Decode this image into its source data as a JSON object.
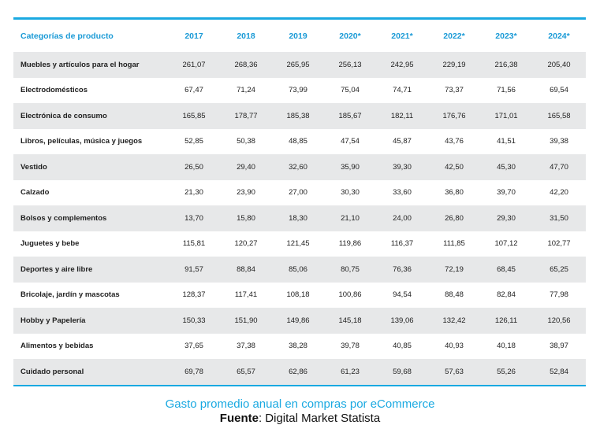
{
  "chart_data": {
    "type": "table",
    "columns": [
      "Categorías de producto",
      "2017",
      "2018",
      "2019",
      "2020*",
      "2021*",
      "2022*",
      "2023*",
      "2024*"
    ],
    "rows": [
      {
        "category": "Muebles y artículos para el hogar",
        "values": [
          "261,07",
          "268,36",
          "265,95",
          "256,13",
          "242,95",
          "229,19",
          "216,38",
          "205,40"
        ]
      },
      {
        "category": "Electrodomésticos",
        "values": [
          "67,47",
          "71,24",
          "73,99",
          "75,04",
          "74,71",
          "73,37",
          "71,56",
          "69,54"
        ]
      },
      {
        "category": "Electrónica de consumo",
        "values": [
          "165,85",
          "178,77",
          "185,38",
          "185,67",
          "182,11",
          "176,76",
          "171,01",
          "165,58"
        ]
      },
      {
        "category": "Libros, películas, música y juegos",
        "values": [
          "52,85",
          "50,38",
          "48,85",
          "47,54",
          "45,87",
          "43,76",
          "41,51",
          "39,38"
        ]
      },
      {
        "category": "Vestido",
        "values": [
          "26,50",
          "29,40",
          "32,60",
          "35,90",
          "39,30",
          "42,50",
          "45,30",
          "47,70"
        ]
      },
      {
        "category": "Calzado",
        "values": [
          "21,30",
          "23,90",
          "27,00",
          "30,30",
          "33,60",
          "36,80",
          "39,70",
          "42,20"
        ]
      },
      {
        "category": "Bolsos y complementos",
        "values": [
          "13,70",
          "15,80",
          "18,30",
          "21,10",
          "24,00",
          "26,80",
          "29,30",
          "31,50"
        ]
      },
      {
        "category": "Juguetes y bebe",
        "values": [
          "115,81",
          "120,27",
          "121,45",
          "119,86",
          "116,37",
          "111,85",
          "107,12",
          "102,77"
        ]
      },
      {
        "category": "Deportes y  aire libre",
        "values": [
          "91,57",
          "88,84",
          "85,06",
          "80,75",
          "76,36",
          "72,19",
          "68,45",
          "65,25"
        ]
      },
      {
        "category": "Bricolaje, jardín y mascotas",
        "values": [
          "128,37",
          "117,41",
          "108,18",
          "100,86",
          "94,54",
          "88,48",
          "82,84",
          "77,98"
        ]
      },
      {
        "category": "Hobby y Papelería",
        "values": [
          "150,33",
          "151,90",
          "149,86",
          "145,18",
          "139,06",
          "132,42",
          "126,11",
          "120,56"
        ]
      },
      {
        "category": "Alimentos y bebidas",
        "values": [
          "37,65",
          "37,38",
          "38,28",
          "39,78",
          "40,85",
          "40,93",
          "40,18",
          "38,97"
        ]
      },
      {
        "category": "Cuidado personal",
        "values": [
          "69,78",
          "65,57",
          "62,86",
          "61,23",
          "59,68",
          "57,63",
          "55,26",
          "52,84"
        ]
      }
    ]
  },
  "caption": {
    "title": "Gasto promedio anual en compras por eCommerce",
    "source_label": "Fuente",
    "source_text": ": Digital Market Statista"
  },
  "colors": {
    "accent": "#1aa9e1",
    "row_shade": "#e7e8e9",
    "text": "#222222"
  }
}
